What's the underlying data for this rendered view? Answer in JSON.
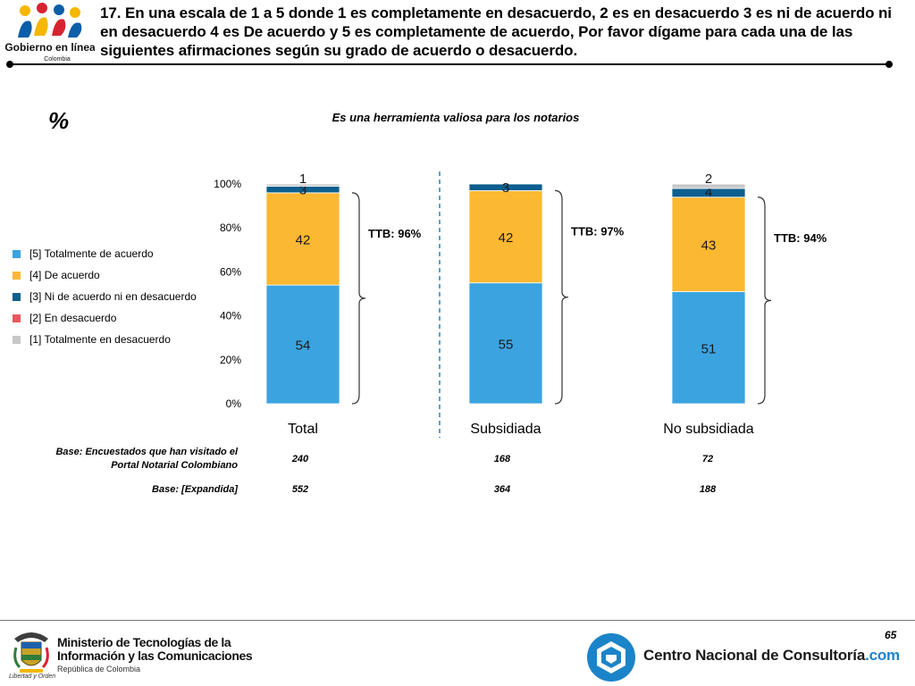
{
  "header": {
    "logo_text": "Gobierno en línea",
    "logo_subtext": "Colombia",
    "title": "17. En una escala de 1 a 5 donde 1 es completamente en desacuerdo, 2 es en desacuerdo 3 es ni de acuerdo ni en desacuerdo 4 es De acuerdo y 5 es completamente de acuerdo, Por favor dígame para cada una de las siguientes afirmaciones según su grado de acuerdo o desacuerdo."
  },
  "percent_symbol": "%",
  "chart_data": {
    "type": "bar",
    "stacked": true,
    "title": "Es una herramienta valiosa para los notarios",
    "categories": [
      "Total",
      "Subsidiada",
      "No subsidiada"
    ],
    "ylim": [
      0,
      100
    ],
    "y_ticks": [
      "0%",
      "20%",
      "40%",
      "60%",
      "80%",
      "100%"
    ],
    "series": [
      {
        "name": "[5] Totalmente de acuerdo",
        "color": "#3ba3e0",
        "values": [
          54,
          55,
          51
        ]
      },
      {
        "name": "[4] De acuerdo",
        "color": "#fbb832",
        "values": [
          42,
          42,
          43
        ]
      },
      {
        "name": "[3] Ni de acuerdo ni en desacuerdo",
        "color": "#0c5f8e",
        "values": [
          3,
          3,
          4
        ]
      },
      {
        "name": "[2] En desacuerdo",
        "color": "#e8585e",
        "values": [
          0,
          0,
          0
        ]
      },
      {
        "name": "[1] Totalmente en desacuerdo",
        "color": "#c8c8c8",
        "values": [
          1,
          0,
          2
        ]
      }
    ],
    "data_labels": [
      [
        "54",
        "55",
        "51"
      ],
      [
        "42",
        "42",
        "43"
      ],
      [
        "3",
        "3",
        "4"
      ],
      [
        "",
        "",
        ""
      ],
      [
        "1",
        "",
        "2"
      ]
    ],
    "ttb_labels": [
      "TTB: 96%",
      "TTB: 97%",
      "TTB: 94%"
    ],
    "legend_position": "left",
    "grid": false
  },
  "bases": {
    "row1_label": "Base: Encuestados que han visitado el Portal Notarial Colombiano",
    "row1_values": [
      "240",
      "168",
      "72"
    ],
    "row2_label": "Base: [Expandida]",
    "row2_values": [
      "552",
      "364",
      "188"
    ]
  },
  "footer": {
    "page_number": "65",
    "crest_caption": "Libertad y Orden",
    "ministry_line1": "Ministerio de Tecnologías de la",
    "ministry_line2": "Información y las Comunicaciones",
    "ministry_sub": "República de Colombia",
    "cnc_name": "Centro Nacional de Consultoría",
    "cnc_suffix": ".com"
  }
}
